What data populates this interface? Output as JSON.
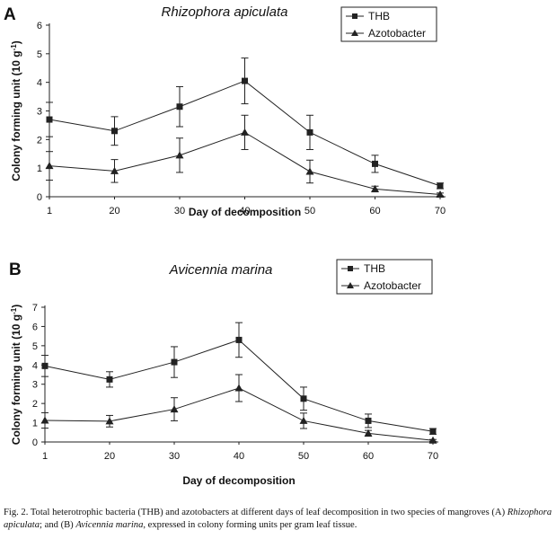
{
  "chart_data": [
    {
      "type": "line",
      "panel_label": "A",
      "title": "Rhizophora apiculata",
      "xlabel": "Day of decomposition",
      "ylabel_main": "Colony forming unit (10 g",
      "ylabel_sup": "-1",
      "ylabel_end": ")",
      "categories": [
        "1",
        "20",
        "30",
        "40",
        "50",
        "60",
        "70"
      ],
      "ylim": [
        0,
        6
      ],
      "yticks": [
        "0",
        "1",
        "2",
        "3",
        "4",
        "5",
        "6"
      ],
      "legend_position": "top-right",
      "series": [
        {
          "name": "THB",
          "marker": "square",
          "values": [
            2.7,
            2.3,
            3.15,
            4.05,
            2.25,
            1.15,
            0.38
          ],
          "errors": [
            0.6,
            0.5,
            0.7,
            0.8,
            0.6,
            0.3,
            0.1
          ]
        },
        {
          "name": "Azotobacter",
          "marker": "triangle",
          "values": [
            1.08,
            0.9,
            1.45,
            2.25,
            0.88,
            0.27,
            0.08
          ],
          "errors": [
            0.5,
            0.4,
            0.6,
            0.6,
            0.4,
            0.1,
            0.05
          ]
        }
      ]
    },
    {
      "type": "line",
      "panel_label": "B",
      "title": "Avicennia marina",
      "xlabel": "Day of decomposition",
      "ylabel_main": "Colony forming unit (10 g",
      "ylabel_sup": "-1",
      "ylabel_end": ")",
      "categories": [
        "1",
        "20",
        "30",
        "40",
        "50",
        "60",
        "70"
      ],
      "ylim": [
        0,
        7
      ],
      "yticks": [
        "0",
        "1",
        "2",
        "3",
        "4",
        "5",
        "6",
        "7"
      ],
      "legend_position": "top-right",
      "series": [
        {
          "name": "THB",
          "marker": "square",
          "values": [
            3.95,
            3.25,
            4.15,
            5.3,
            2.25,
            1.1,
            0.55
          ],
          "errors": [
            0.55,
            0.4,
            0.8,
            0.9,
            0.6,
            0.35,
            0.15
          ]
        },
        {
          "name": "Azotobacter",
          "marker": "triangle",
          "values": [
            1.12,
            1.08,
            1.7,
            2.8,
            1.1,
            0.45,
            0.08
          ],
          "errors": [
            0.4,
            0.3,
            0.6,
            0.7,
            0.4,
            0.15,
            0.05
          ]
        }
      ]
    }
  ],
  "caption": {
    "part1": "Fig. 2. Total heterotrophic bacteria (THB) and azotobacters at different days of leaf decomposition in two species of mangroves (A) ",
    "species_a": "Rhizophora apiculata",
    "part2": "; and (B) ",
    "species_b": "Avicennia marina",
    "part3": ", expressed in colony forming units per gram leaf tissue."
  }
}
